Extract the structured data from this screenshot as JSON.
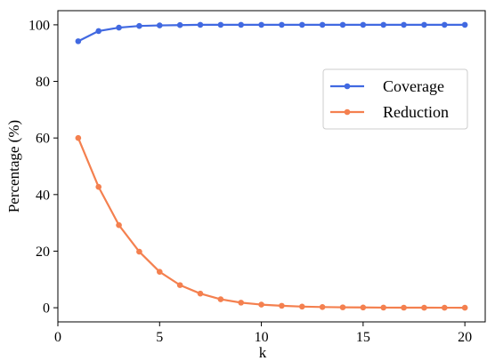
{
  "chart_data": {
    "type": "line",
    "title": "",
    "xlabel": "k",
    "ylabel": "Percentage (%)",
    "xlim": [
      0,
      21
    ],
    "ylim": [
      -5,
      105
    ],
    "xticks": [
      0,
      5,
      10,
      15,
      20
    ],
    "yticks": [
      0,
      20,
      40,
      60,
      80,
      100
    ],
    "grid": false,
    "legend": {
      "position": "center-right"
    },
    "x": [
      1,
      2,
      3,
      4,
      5,
      6,
      7,
      8,
      9,
      10,
      11,
      12,
      13,
      14,
      15,
      16,
      17,
      18,
      19,
      20
    ],
    "series": [
      {
        "name": "Coverage",
        "color": "#4169e1",
        "values": [
          94.2,
          97.8,
          99.0,
          99.6,
          99.8,
          99.9,
          100,
          100,
          100,
          100,
          100,
          100,
          100,
          100,
          100,
          100,
          100,
          100,
          100,
          100
        ]
      },
      {
        "name": "Reduction",
        "color": "#f4804f",
        "values": [
          60.0,
          42.7,
          29.2,
          19.8,
          12.7,
          8.0,
          5.0,
          3.0,
          1.8,
          1.1,
          0.7,
          0.4,
          0.25,
          0.15,
          0.1,
          0.05,
          0.03,
          0.02,
          0.01,
          0.0
        ]
      }
    ]
  }
}
